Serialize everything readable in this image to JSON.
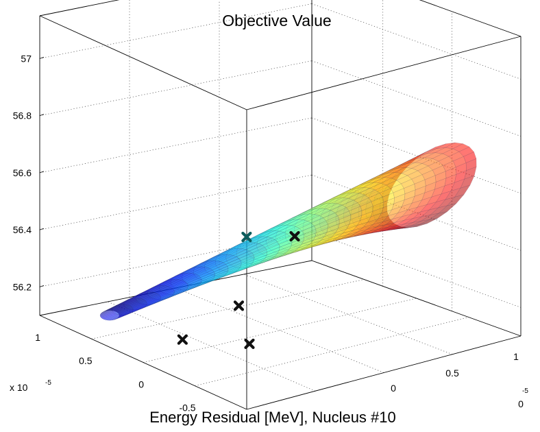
{
  "chart_data": {
    "type": "surface3d",
    "title": "Objective Value",
    "xlabel": "Energy Residual [MeV], Nucleus #10",
    "exponents": [
      {
        "base": "x 10",
        "power": "-5"
      },
      {
        "power": "-5"
      }
    ],
    "z_ticks": [
      "57",
      "56.8",
      "56.6",
      "56.4",
      "56.2"
    ],
    "z_tick_values": [
      57,
      56.8,
      56.6,
      56.4,
      56.2
    ],
    "y_ticks": [
      "1",
      "0.5",
      "0",
      "-0.5"
    ],
    "x_ticks": [
      "1",
      "0.5",
      "0",
      "0"
    ],
    "zlim": [
      56.1,
      57.15
    ],
    "grid": true,
    "colormap": "jet",
    "markers": [
      {
        "x": -0.75,
        "y": -0.05,
        "z": 56.16,
        "color": "#111111"
      },
      {
        "x": -0.45,
        "y": -0.3,
        "z": 56.15,
        "color": "#111111"
      },
      {
        "x": -0.3,
        "y": 0.0,
        "z": 56.22,
        "color": "#111111"
      },
      {
        "x": 0.1,
        "y": 0.45,
        "z": 56.35,
        "color": "#0d5d5d"
      },
      {
        "x": 0.3,
        "y": 0.25,
        "z": 56.36,
        "color": "#111111"
      }
    ]
  }
}
